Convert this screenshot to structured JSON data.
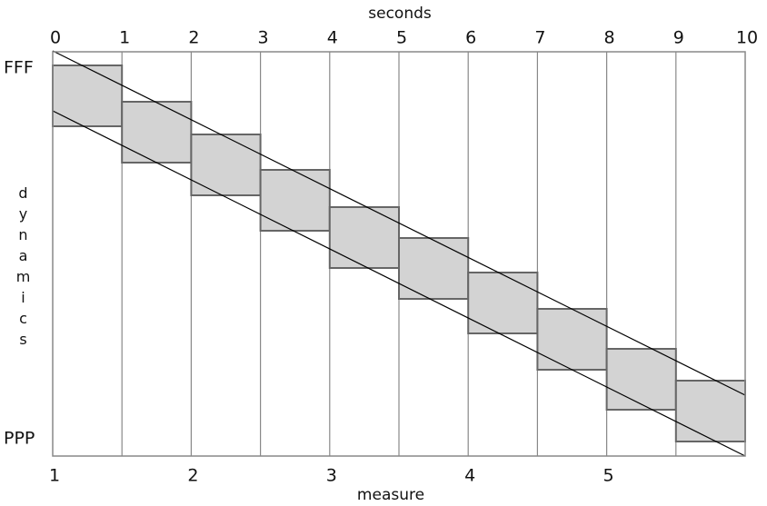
{
  "header": {
    "title": "seconds"
  },
  "seconds": [
    0,
    1,
    2,
    3,
    4,
    5,
    6,
    7,
    8,
    9,
    10
  ],
  "dynamics": {
    "high": "FFF",
    "label": "dynamics",
    "low": "PPP"
  },
  "measures": [
    1,
    2,
    3,
    4,
    5
  ],
  "footer": {
    "label": "measure"
  }
}
